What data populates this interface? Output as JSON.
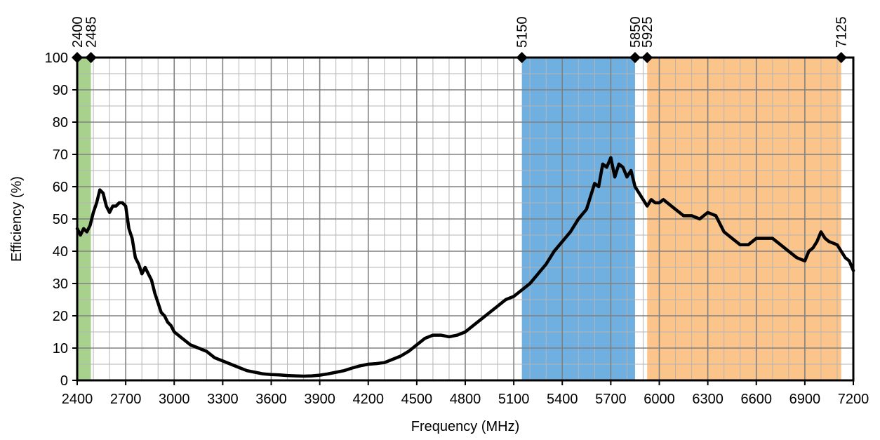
{
  "chart_data": {
    "type": "line",
    "xlabel": "Frequency (MHz)",
    "ylabel": "Efficiency (%)",
    "xlim": [
      2400,
      7200
    ],
    "ylim": [
      0,
      100
    ],
    "x_ticks": [
      2400,
      2700,
      3000,
      3300,
      3600,
      3900,
      4200,
      4500,
      4800,
      5100,
      5400,
      5700,
      6000,
      6300,
      6600,
      6900,
      7200
    ],
    "x_tick_labels": [
      "2400",
      "2700",
      "3000",
      "3300",
      "3600",
      "3900",
      "4200",
      "4500",
      "4800",
      "5100",
      "5400",
      "5700",
      "6000",
      "6300",
      "6600",
      "6900",
      "7200"
    ],
    "y_ticks": [
      0,
      10,
      20,
      30,
      40,
      50,
      60,
      70,
      80,
      90,
      100
    ],
    "y_tick_labels": [
      "0",
      "10",
      "20",
      "30",
      "40",
      "50",
      "60",
      "70",
      "80",
      "90",
      "100"
    ],
    "x_minor_step": 100,
    "y_minor_step": 5,
    "grid": true,
    "bands": [
      {
        "start": 2400,
        "end": 2485,
        "color": "#a9d18e"
      },
      {
        "start": 5150,
        "end": 5850,
        "color": "#6fb0e0"
      },
      {
        "start": 5925,
        "end": 7125,
        "color": "#fbc48a"
      }
    ],
    "markers": [
      {
        "x": 2400,
        "label": "2400"
      },
      {
        "x": 2485,
        "label": "2485"
      },
      {
        "x": 5150,
        "label": "5150"
      },
      {
        "x": 5850,
        "label": "5850"
      },
      {
        "x": 5925,
        "label": "5925"
      },
      {
        "x": 7125,
        "label": "7125"
      }
    ],
    "series": [
      {
        "color": "#000000",
        "x": [
          2400,
          2420,
          2440,
          2460,
          2480,
          2500,
          2520,
          2540,
          2560,
          2580,
          2600,
          2620,
          2640,
          2660,
          2680,
          2700,
          2720,
          2740,
          2760,
          2780,
          2800,
          2820,
          2840,
          2860,
          2880,
          2900,
          2920,
          2940,
          2960,
          2980,
          3000,
          3050,
          3100,
          3150,
          3200,
          3250,
          3300,
          3350,
          3400,
          3450,
          3500,
          3550,
          3600,
          3650,
          3700,
          3750,
          3800,
          3850,
          3900,
          3950,
          4000,
          4050,
          4100,
          4150,
          4200,
          4250,
          4300,
          4350,
          4400,
          4450,
          4500,
          4550,
          4600,
          4650,
          4700,
          4750,
          4800,
          4850,
          4900,
          4950,
          5000,
          5050,
          5100,
          5150,
          5200,
          5250,
          5300,
          5350,
          5400,
          5450,
          5500,
          5550,
          5600,
          5625,
          5650,
          5675,
          5700,
          5725,
          5750,
          5775,
          5800,
          5825,
          5850,
          5875,
          5900,
          5925,
          5950,
          5975,
          6000,
          6025,
          6050,
          6100,
          6150,
          6200,
          6250,
          6300,
          6350,
          6400,
          6450,
          6500,
          6550,
          6600,
          6650,
          6700,
          6750,
          6800,
          6850,
          6900,
          6925,
          6950,
          6975,
          7000,
          7025,
          7050,
          7100,
          7125,
          7150,
          7175,
          7200
        ],
        "y": [
          47,
          45,
          47,
          46,
          48,
          52,
          55,
          59,
          58,
          54,
          52,
          54,
          54,
          55,
          55,
          54,
          47,
          44,
          38,
          36,
          33,
          35,
          33,
          31,
          27,
          24,
          21,
          20,
          18,
          17,
          15,
          13,
          11,
          10,
          9,
          7,
          6,
          5,
          4,
          3,
          2.5,
          2,
          1.8,
          1.7,
          1.5,
          1.4,
          1.3,
          1.4,
          1.6,
          2,
          2.5,
          3,
          3.8,
          4.5,
          5,
          5.2,
          5.5,
          6.5,
          7.5,
          9,
          11,
          13,
          14,
          14,
          13.5,
          14,
          15,
          17,
          19,
          21,
          23,
          25,
          26,
          28,
          30,
          33,
          36,
          40,
          43,
          46,
          50,
          53,
          61,
          60,
          67,
          66,
          69,
          63,
          67,
          66,
          63,
          65,
          60,
          58,
          56,
          54,
          56,
          55,
          55,
          56,
          55,
          53,
          51,
          51,
          50,
          52,
          51,
          46,
          44,
          42,
          42,
          44,
          44,
          44,
          42,
          40,
          38,
          37,
          40,
          41,
          43,
          46,
          44,
          43,
          42,
          40,
          38,
          37,
          34
        ]
      }
    ]
  }
}
